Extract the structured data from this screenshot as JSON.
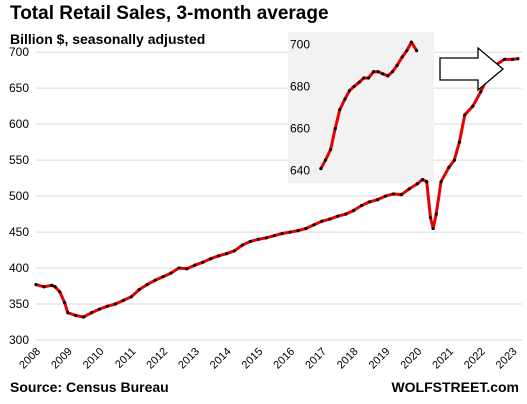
{
  "chart_data": [
    {
      "type": "line",
      "title": "Total Retail Sales, 3-month average",
      "subtitle": "Billion $, seasonally adjusted",
      "source": "Source: Census Bureau",
      "brand": "WOLFSTREET.com",
      "x_tick_labels": [
        "2008",
        "2009",
        "2010",
        "2011",
        "2012",
        "2013",
        "2014",
        "2015",
        "2016",
        "2017",
        "2018",
        "2019",
        "2020",
        "2021",
        "2022",
        "2023"
      ],
      "y_tick_labels": [
        "300",
        "350",
        "400",
        "450",
        "500",
        "550",
        "600",
        "650",
        "700"
      ],
      "xlim": [
        2008.0,
        2023.3
      ],
      "ylim": [
        300,
        710
      ],
      "grid": true,
      "line_color": "#e60000",
      "marker_color": "#000000",
      "series": [
        {
          "x": [
            2008.0,
            2008.25,
            2008.5,
            2008.6,
            2008.75,
            2008.9,
            2009.0,
            2009.25,
            2009.5,
            2009.75,
            2010.0,
            2010.25,
            2010.5,
            2010.75,
            2011.0,
            2011.25,
            2011.5,
            2011.75,
            2012.0,
            2012.25,
            2012.5,
            2012.75,
            2013.0,
            2013.25,
            2013.5,
            2013.75,
            2014.0,
            2014.25,
            2014.5,
            2014.75,
            2015.0,
            2015.25,
            2015.5,
            2015.75,
            2016.0,
            2016.25,
            2016.5,
            2016.75,
            2017.0,
            2017.25,
            2017.5,
            2017.75,
            2018.0,
            2018.25,
            2018.5,
            2018.75,
            2019.0,
            2019.25,
            2019.5,
            2019.75,
            2020.0,
            2020.17,
            2020.3,
            2020.42,
            2020.5,
            2020.6,
            2020.75,
            2021.0,
            2021.17,
            2021.33,
            2021.5,
            2021.75,
            2022.0,
            2022.25,
            2022.5,
            2022.75,
            2023.0,
            2023.17
          ],
          "y": [
            377,
            374,
            376,
            374,
            367,
            352,
            338,
            334,
            332,
            338,
            343,
            347,
            350,
            355,
            360,
            370,
            377,
            383,
            388,
            393,
            400,
            399,
            404,
            408,
            413,
            417,
            420,
            424,
            432,
            437,
            440,
            442,
            445,
            448,
            450,
            452,
            455,
            460,
            465,
            468,
            472,
            475,
            480,
            487,
            492,
            495,
            500,
            503,
            502,
            510,
            517,
            523,
            520,
            470,
            455,
            475,
            520,
            540,
            550,
            575,
            613,
            625,
            645,
            668,
            683,
            690,
            690,
            691
          ]
        }
      ]
    },
    {
      "type": "line",
      "title": "",
      "inset": true,
      "y_tick_labels": [
        "640",
        "660",
        "680",
        "700"
      ],
      "xlim": [
        2021.45,
        2023.3
      ],
      "ylim": [
        637,
        703
      ],
      "grid": false,
      "line_color": "#e60000",
      "marker_color": "#000000",
      "series": [
        {
          "x": [
            2021.5,
            2021.58,
            2021.67,
            2021.75,
            2021.83,
            2021.92,
            2022.0,
            2022.08,
            2022.17,
            2022.25,
            2022.33,
            2022.42,
            2022.5,
            2022.58,
            2022.67,
            2022.75,
            2022.83,
            2022.92,
            2023.0,
            2023.08,
            2023.17
          ],
          "y": [
            641,
            645,
            650,
            660,
            669,
            674,
            678,
            680,
            682,
            684,
            684,
            687,
            687,
            686,
            685,
            687,
            690,
            694,
            697,
            701,
            697
          ]
        }
      ]
    }
  ]
}
